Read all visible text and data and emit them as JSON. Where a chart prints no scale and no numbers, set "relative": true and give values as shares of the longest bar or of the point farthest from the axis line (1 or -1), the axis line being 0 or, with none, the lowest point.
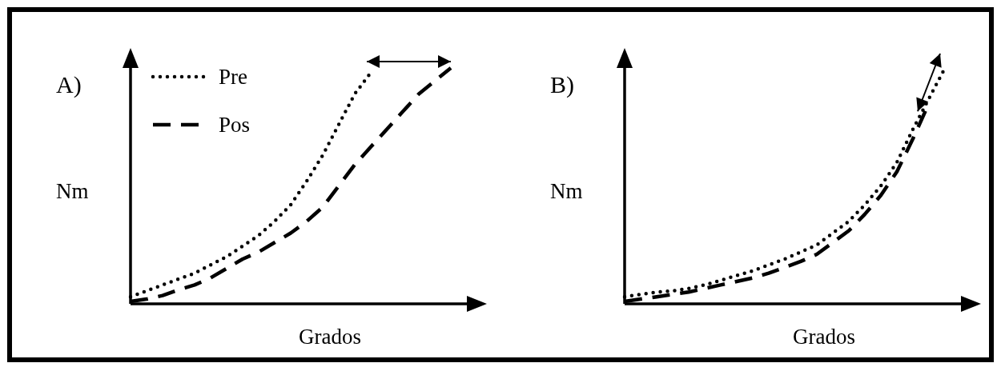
{
  "chart_data": [
    {
      "type": "line",
      "title": "A)",
      "xlabel": "Grados",
      "ylabel": "Nm",
      "relative": true,
      "legend": "top left",
      "categories": [
        null,
        null,
        null,
        null,
        null,
        null,
        null,
        null,
        null,
        null,
        null,
        null,
        null,
        null,
        null,
        null,
        null,
        null,
        null,
        null,
        null
      ],
      "series": [
        {
          "name": "Pre",
          "color": "#000000",
          "line_style": "dotted",
          "values": [
            0.03,
            0.055,
            0.08,
            0.105,
            0.13,
            0.165,
            0.2,
            0.245,
            0.29,
            0.35,
            0.42,
            0.52,
            0.63,
            0.76,
            0.89,
            0.98,
            null,
            null,
            null,
            null,
            null
          ]
        },
        {
          "name": "Pos",
          "color": "#000000",
          "line_style": "dashed",
          "values": [
            0.01,
            0.02,
            0.035,
            0.06,
            0.08,
            0.11,
            0.15,
            0.19,
            0.22,
            0.26,
            0.3,
            0.35,
            0.41,
            0.5,
            0.59,
            0.665,
            0.74,
            0.815,
            0.89,
            0.945,
            1
          ]
        }
      ]
    },
    {
      "type": "line",
      "title": "B)",
      "xlabel": "Grados",
      "ylabel": "Nm",
      "relative": true,
      "categories": [
        null,
        null,
        null,
        null,
        null,
        null,
        null,
        null,
        null,
        null,
        null,
        null,
        null,
        null,
        null,
        null,
        null,
        null,
        null,
        null,
        null
      ],
      "series": [
        {
          "color": "#000000",
          "line_style": "dotted",
          "values": [
            0.03,
            0.04,
            0.05,
            0.055,
            0.065,
            0.08,
            0.1,
            0.12,
            0.14,
            0.165,
            0.19,
            0.22,
            0.25,
            0.3,
            0.35,
            0.42,
            0.5,
            0.6,
            0.74,
            0.87,
            1
          ]
        },
        {
          "color": "#000000",
          "line_style": "dashed",
          "values": [
            0.01,
            0.02,
            0.03,
            0.04,
            0.05,
            0.065,
            0.08,
            0.095,
            0.11,
            0.13,
            0.155,
            0.18,
            0.21,
            0.26,
            0.31,
            0.38,
            0.46,
            0.56,
            0.7,
            0.85,
            null
          ]
        }
      ]
    }
  ]
}
